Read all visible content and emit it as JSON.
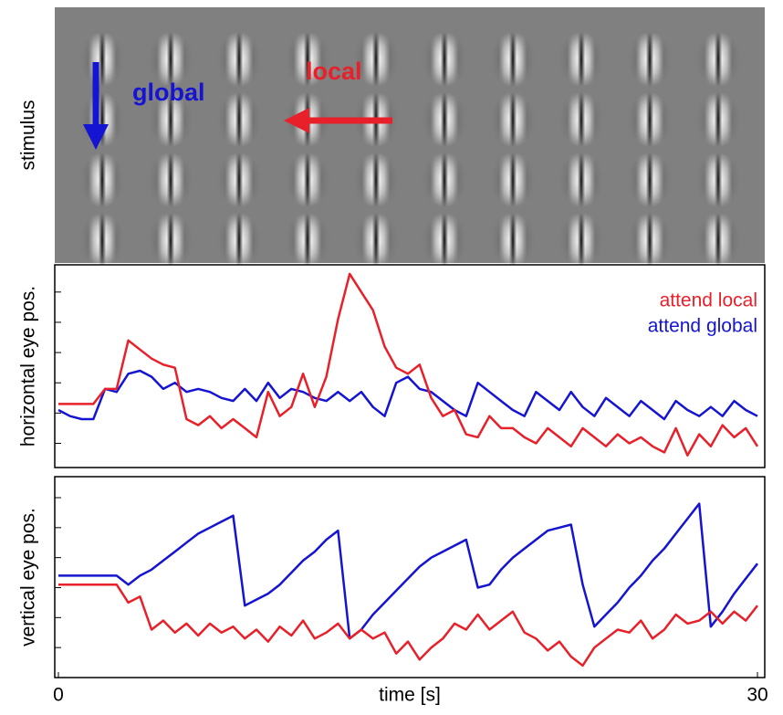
{
  "stimulus": {
    "ylabel": "stimulus",
    "labels": [
      "global",
      "local"
    ]
  },
  "chart_data": [
    {
      "type": "line",
      "ylabel": "horizontal eye pos.",
      "x": [
        0,
        0.5,
        1,
        1.5,
        2,
        2.5,
        3,
        3.5,
        4,
        4.5,
        5,
        5.5,
        6,
        6.5,
        7,
        7.5,
        8,
        8.5,
        9,
        9.5,
        10,
        10.5,
        11,
        11.5,
        12,
        12.5,
        13,
        13.5,
        14,
        14.5,
        15,
        15.5,
        16,
        16.5,
        17,
        17.5,
        18,
        18.5,
        19,
        19.5,
        20,
        20.5,
        21,
        21.5,
        22,
        22.5,
        23,
        23.5,
        24,
        24.5,
        25,
        25.5,
        26,
        26.5,
        27,
        27.5,
        28,
        28.5,
        29,
        29.5,
        30
      ],
      "series": [
        {
          "name": "attend local",
          "color": "#e8202a",
          "values": [
            1.3,
            1.3,
            1.3,
            1.3,
            1.8,
            1.8,
            3.4,
            3.1,
            2.8,
            2.6,
            2.5,
            0.8,
            0.6,
            0.9,
            0.5,
            0.8,
            0.5,
            0.2,
            1.7,
            0.9,
            1.2,
            2.3,
            1.2,
            2.2,
            4.1,
            5.6,
            5.0,
            4.4,
            3.2,
            2.5,
            2.3,
            2.6,
            1.5,
            0.9,
            1.1,
            0.3,
            0.2,
            0.9,
            0.5,
            0.5,
            0.2,
            0.0,
            0.5,
            0.2,
            -0.1,
            0.5,
            0.2,
            -0.1,
            0.3,
            0.0,
            0.2,
            -0.1,
            -0.3,
            0.5,
            -0.4,
            0.3,
            -0.1,
            0.6,
            0.2,
            0.5,
            -0.1
          ]
        },
        {
          "name": "attend global",
          "color": "#1414d2",
          "values": [
            1.1,
            0.9,
            0.8,
            0.8,
            1.8,
            1.7,
            2.3,
            2.4,
            2.2,
            1.8,
            2.0,
            1.7,
            1.8,
            1.7,
            1.5,
            1.4,
            1.8,
            1.4,
            2.0,
            1.5,
            1.8,
            1.7,
            1.5,
            1.4,
            1.7,
            1.4,
            1.7,
            1.2,
            0.9,
            2.0,
            2.2,
            1.8,
            1.7,
            1.4,
            1.1,
            0.9,
            2.0,
            1.7,
            1.4,
            1.1,
            0.9,
            1.7,
            1.4,
            1.1,
            1.7,
            1.2,
            0.9,
            1.5,
            1.2,
            0.9,
            1.4,
            1.1,
            0.8,
            1.4,
            1.1,
            0.9,
            1.2,
            0.9,
            1.4,
            1.1,
            0.9
          ]
        }
      ],
      "xlim": [
        0,
        30
      ],
      "ylim": [
        -0.8,
        5.9
      ],
      "yticks": [
        0,
        1,
        2,
        3,
        4,
        5
      ],
      "legend": "upper right"
    },
    {
      "type": "line",
      "ylabel": "vertical eye pos.",
      "xlabel": "time [s]",
      "x": [
        0,
        0.5,
        1,
        1.5,
        2,
        2.5,
        3,
        3.5,
        4,
        4.5,
        5,
        5.5,
        6,
        6.5,
        7,
        7.5,
        8,
        8.5,
        9,
        9.5,
        10,
        10.5,
        11,
        11.5,
        12,
        12.5,
        13,
        13.5,
        14,
        14.5,
        15,
        15.5,
        16,
        16.5,
        17,
        17.5,
        18,
        18.5,
        19,
        19.5,
        20,
        20.5,
        21,
        21.5,
        22,
        22.5,
        23,
        23.5,
        24,
        24.5,
        25,
        25.5,
        26,
        26.5,
        27,
        27.5,
        28,
        28.5,
        29,
        29.5,
        30
      ],
      "series": [
        {
          "name": "attend local",
          "color": "#e8202a",
          "values": [
            2.1,
            2.1,
            2.1,
            2.1,
            2.1,
            2.1,
            1.5,
            1.7,
            0.6,
            0.9,
            0.5,
            0.8,
            0.4,
            0.8,
            0.5,
            0.7,
            0.3,
            0.6,
            0.2,
            0.7,
            0.4,
            0.9,
            0.3,
            0.5,
            0.8,
            0.3,
            0.6,
            0.3,
            0.5,
            -0.2,
            0.2,
            -0.4,
            0.0,
            0.3,
            0.8,
            0.6,
            1.1,
            0.6,
            0.9,
            1.2,
            0.5,
            0.3,
            -0.1,
            0.2,
            -0.3,
            -0.6,
            0.0,
            0.3,
            0.6,
            0.5,
            0.9,
            0.3,
            0.6,
            1.1,
            0.8,
            0.9,
            1.2,
            0.8,
            1.2,
            0.9,
            1.4
          ]
        },
        {
          "name": "attend global",
          "color": "#1414d2",
          "values": [
            2.4,
            2.4,
            2.4,
            2.4,
            2.4,
            2.4,
            2.1,
            2.4,
            2.6,
            2.9,
            3.2,
            3.5,
            3.8,
            4.0,
            4.2,
            4.4,
            1.4,
            1.6,
            1.8,
            2.1,
            2.5,
            2.9,
            3.2,
            3.6,
            3.9,
            0.3,
            0.6,
            1.1,
            1.5,
            1.9,
            2.3,
            2.7,
            3.0,
            3.2,
            3.4,
            3.6,
            2.0,
            2.1,
            2.6,
            3.0,
            3.3,
            3.6,
            3.9,
            4.0,
            4.1,
            2.1,
            0.7,
            1.1,
            1.5,
            2.0,
            2.4,
            2.9,
            3.3,
            3.8,
            4.3,
            4.8,
            0.7,
            1.2,
            1.8,
            2.3,
            2.8
          ]
        }
      ],
      "xlim": [
        0,
        30
      ],
      "xticks": [
        0,
        30
      ],
      "ylim": [
        -1,
        5.7
      ],
      "yticks": [
        0,
        1,
        2,
        3,
        4,
        5
      ]
    }
  ]
}
